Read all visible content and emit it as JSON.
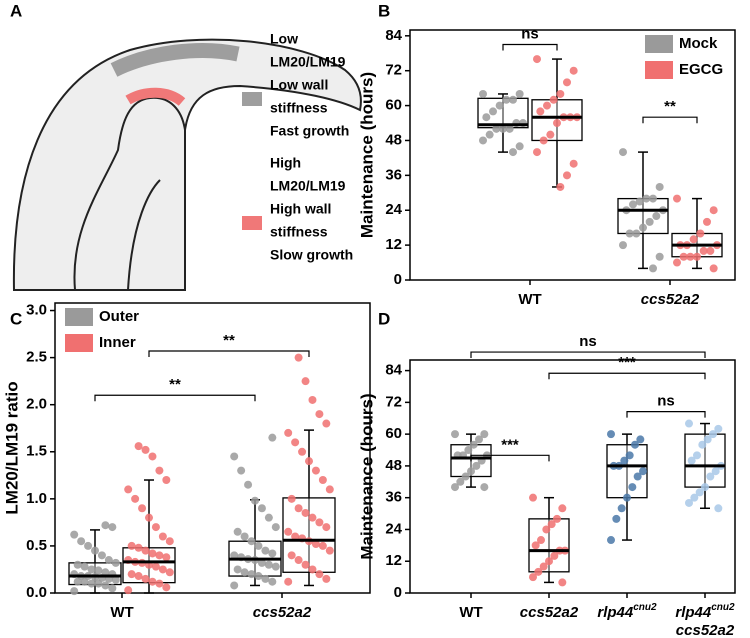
{
  "diagram": {
    "panel_label": "A",
    "legend": [
      {
        "color": "#9e9e9e",
        "lines": [
          "Low",
          "LM20/LM19",
          "Low wall",
          "stiffness",
          "Fast growth"
        ]
      },
      {
        "color": "#f07878",
        "lines": [
          "High",
          "LM20/LM19",
          "High wall",
          "stiffness",
          "Slow growth"
        ]
      }
    ]
  },
  "chart_data": [
    {
      "type": "box",
      "panel_label": "B",
      "y_label": "Maintenance (hours)",
      "ylim": [
        0,
        86
      ],
      "yticks": [
        0,
        12,
        24,
        36,
        48,
        60,
        72,
        84
      ],
      "legend": "upper right",
      "categories": [
        "WT",
        "ccs52a2"
      ],
      "series": [
        {
          "name": "Mock",
          "color": "#9a9a9a",
          "boxes": [
            {
              "q1": 52.4,
              "median": 53.4,
              "q3": 62.5,
              "whislo": 44,
              "whishi": 64,
              "points": [
                64,
                64,
                62,
                62,
                60,
                58,
                56,
                54,
                54,
                52,
                52,
                52,
                50,
                48,
                46,
                44
              ]
            },
            {
              "q1": 16,
              "median": 24,
              "q3": 28,
              "whislo": 4,
              "whishi": 44,
              "points": [
                44,
                32,
                28,
                28,
                27,
                26,
                24,
                24,
                22,
                20,
                18,
                16,
                16,
                12,
                8,
                4
              ]
            }
          ]
        },
        {
          "name": "EGCG",
          "color": "#f07070",
          "boxes": [
            {
              "q1": 48,
              "median": 56,
              "q3": 62,
              "whislo": 32,
              "whishi": 76,
              "points": [
                76,
                72,
                68,
                64,
                62,
                60,
                58,
                56,
                56,
                56,
                54,
                50,
                48,
                44,
                40,
                36,
                32
              ]
            },
            {
              "q1": 8,
              "median": 12,
              "q3": 16,
              "whislo": 4,
              "whishi": 28,
              "points": [
                28,
                24,
                20,
                16,
                14,
                12,
                12,
                12,
                10,
                10,
                8,
                8,
                8,
                6,
                4
              ]
            }
          ]
        }
      ],
      "annotations": [
        {
          "text": "ns",
          "from": [
            0,
            0
          ],
          "to": [
            0,
            1
          ],
          "y": 81
        },
        {
          "text": "**",
          "from": [
            1,
            0
          ],
          "to": [
            1,
            1
          ],
          "y": 56
        }
      ]
    },
    {
      "type": "box",
      "panel_label": "C",
      "y_label": "LM20/LM19 ratio",
      "ylim": [
        0,
        3.08
      ],
      "yticks": [
        {
          "value": 0,
          "label": "0.0"
        },
        0.5,
        {
          "value": 1,
          "label": "1.0"
        },
        1.5,
        {
          "value": 2,
          "label": "2.0"
        },
        2.5,
        {
          "value": 3,
          "label": "3.0"
        }
      ],
      "legend": "upper left",
      "categories": [
        "WT",
        "ccs52a2"
      ],
      "series": [
        {
          "name": "Outer",
          "color": "#9a9a9a",
          "boxes": [
            {
              "q1": 0.09,
              "median": 0.18,
              "q3": 0.32,
              "whislo": 0,
              "whishi": 0.67,
              "points": [
                0.02,
                0.05,
                0.08,
                0.1,
                0.1,
                0.12,
                0.12,
                0.14,
                0.15,
                0.16,
                0.17,
                0.18,
                0.18,
                0.2,
                0.2,
                0.22,
                0.24,
                0.25,
                0.28,
                0.3,
                0.32,
                0.35,
                0.4,
                0.45,
                0.5,
                0.55,
                0.62,
                0.7,
                0.72
              ]
            },
            {
              "q1": 0.18,
              "median": 0.36,
              "q3": 0.55,
              "whislo": 0.08,
              "whishi": 0.99,
              "points": [
                0.08,
                0.12,
                0.15,
                0.18,
                0.2,
                0.22,
                0.25,
                0.28,
                0.3,
                0.32,
                0.35,
                0.36,
                0.38,
                0.4,
                0.42,
                0.45,
                0.5,
                0.55,
                0.6,
                0.65,
                0.7,
                0.8,
                0.9,
                0.98,
                1.15,
                1.3,
                1.45,
                1.65
              ]
            }
          ]
        },
        {
          "name": "Inner",
          "color": "#f07070",
          "boxes": [
            {
              "q1": 0.11,
              "median": 0.33,
              "q3": 0.48,
              "whislo": 0,
              "whishi": 1.2,
              "points": [
                0.03,
                0.06,
                0.1,
                0.12,
                0.15,
                0.18,
                0.2,
                0.22,
                0.25,
                0.28,
                0.3,
                0.32,
                0.33,
                0.35,
                0.38,
                0.4,
                0.42,
                0.45,
                0.48,
                0.5,
                0.55,
                0.6,
                0.7,
                0.8,
                0.9,
                1.0,
                1.1,
                1.2,
                1.3,
                1.45,
                1.52,
                1.56
              ]
            },
            {
              "q1": 0.22,
              "median": 0.56,
              "q3": 1.01,
              "whislo": 0.08,
              "whishi": 1.73,
              "points": [
                0.12,
                0.15,
                0.2,
                0.25,
                0.3,
                0.35,
                0.4,
                0.45,
                0.5,
                0.52,
                0.55,
                0.58,
                0.6,
                0.65,
                0.7,
                0.75,
                0.8,
                0.85,
                0.9,
                1.0,
                1.1,
                1.2,
                1.3,
                1.4,
                1.5,
                1.6,
                1.7,
                1.8,
                1.9,
                2.05,
                2.25,
                2.5
              ]
            }
          ]
        }
      ],
      "annotations": [
        {
          "text": "**",
          "from": [
            0,
            0
          ],
          "to": [
            1,
            0
          ],
          "y": 2.1
        },
        {
          "text": "**",
          "from": [
            0,
            1
          ],
          "to": [
            1,
            1
          ],
          "y": 2.57
        }
      ]
    },
    {
      "type": "box",
      "panel_label": "D",
      "y_label": "Maintenance (hours)",
      "ylim": [
        0,
        88
      ],
      "yticks": [
        0,
        12,
        24,
        36,
        48,
        60,
        72,
        84
      ],
      "categories": [
        "WT",
        "ccs52a2",
        {
          "text": "rlp44",
          "sup": "cnu2"
        },
        {
          "text": "rlp44",
          "sup": "cnu2",
          "line2": "ccs52a2"
        }
      ],
      "series": [
        {
          "colors": [
            "#9a9a9a",
            "#f07070",
            "#4a78a8",
            "#a8c8e8"
          ],
          "boxes": [
            {
              "q1": 44,
              "median": 51,
              "q3": 56,
              "whislo": 40,
              "whishi": 60,
              "points": [
                60,
                60,
                58,
                56,
                54,
                52,
                52,
                52,
                50,
                48,
                46,
                44,
                42,
                40,
                40
              ]
            },
            {
              "q1": 8,
              "median": 16,
              "q3": 28,
              "whislo": 4,
              "whishi": 36,
              "points": [
                36,
                32,
                28,
                26,
                24,
                20,
                18,
                16,
                16,
                14,
                12,
                10,
                8,
                6,
                4
              ]
            },
            {
              "q1": 36,
              "median": 48,
              "q3": 56,
              "whislo": 20,
              "whishi": 60,
              "points": [
                60,
                58,
                56,
                52,
                50,
                48,
                48,
                46,
                44,
                40,
                36,
                32,
                28,
                20
              ]
            },
            {
              "q1": 40,
              "median": 48,
              "q3": 60,
              "whislo": 32,
              "whishi": 64,
              "points": [
                64,
                62,
                60,
                58,
                56,
                52,
                50,
                48,
                46,
                44,
                40,
                38,
                36,
                34,
                32
              ]
            }
          ]
        }
      ],
      "annotations": [
        {
          "text": "***",
          "from": [
            0
          ],
          "to": [
            1
          ],
          "y": 52
        },
        {
          "text": "ns",
          "from": [
            2
          ],
          "to": [
            3
          ],
          "y": 68.5
        },
        {
          "text": "***",
          "from": [
            1
          ],
          "to": [
            3
          ],
          "y": 83
        },
        {
          "text": "ns",
          "from": [
            0
          ],
          "to": [
            3
          ],
          "y": 91
        }
      ]
    }
  ]
}
